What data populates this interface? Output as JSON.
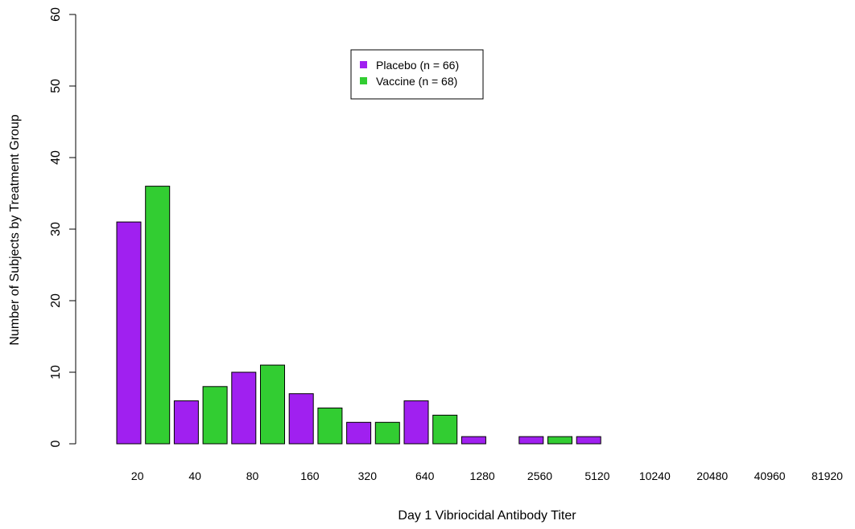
{
  "chart_data": {
    "type": "bar",
    "title": "",
    "xlabel": "Day 1 Vibriocidal Antibody Titer",
    "ylabel": "Number of Subjects by Treatment Group",
    "ylim": [
      0,
      60
    ],
    "yticks": [
      "0",
      "10",
      "20",
      "30",
      "40",
      "50",
      "60"
    ],
    "grid": false,
    "legend_position": "top-center",
    "categories": [
      "20",
      "40",
      "80",
      "160",
      "320",
      "640",
      "1280",
      "2560",
      "5120",
      "10240",
      "20480",
      "40960",
      "81920"
    ],
    "series": [
      {
        "name": "Placebo (n = 66)",
        "color": "#A020F0",
        "values": [
          31,
          6,
          10,
          7,
          3,
          6,
          1,
          1,
          1,
          0,
          0,
          0,
          0
        ]
      },
      {
        "name": "Vaccine (n = 68)",
        "color": "#32CD32",
        "values": [
          36,
          8,
          11,
          5,
          3,
          4,
          0,
          1,
          0,
          0,
          0,
          0,
          0
        ]
      }
    ]
  }
}
